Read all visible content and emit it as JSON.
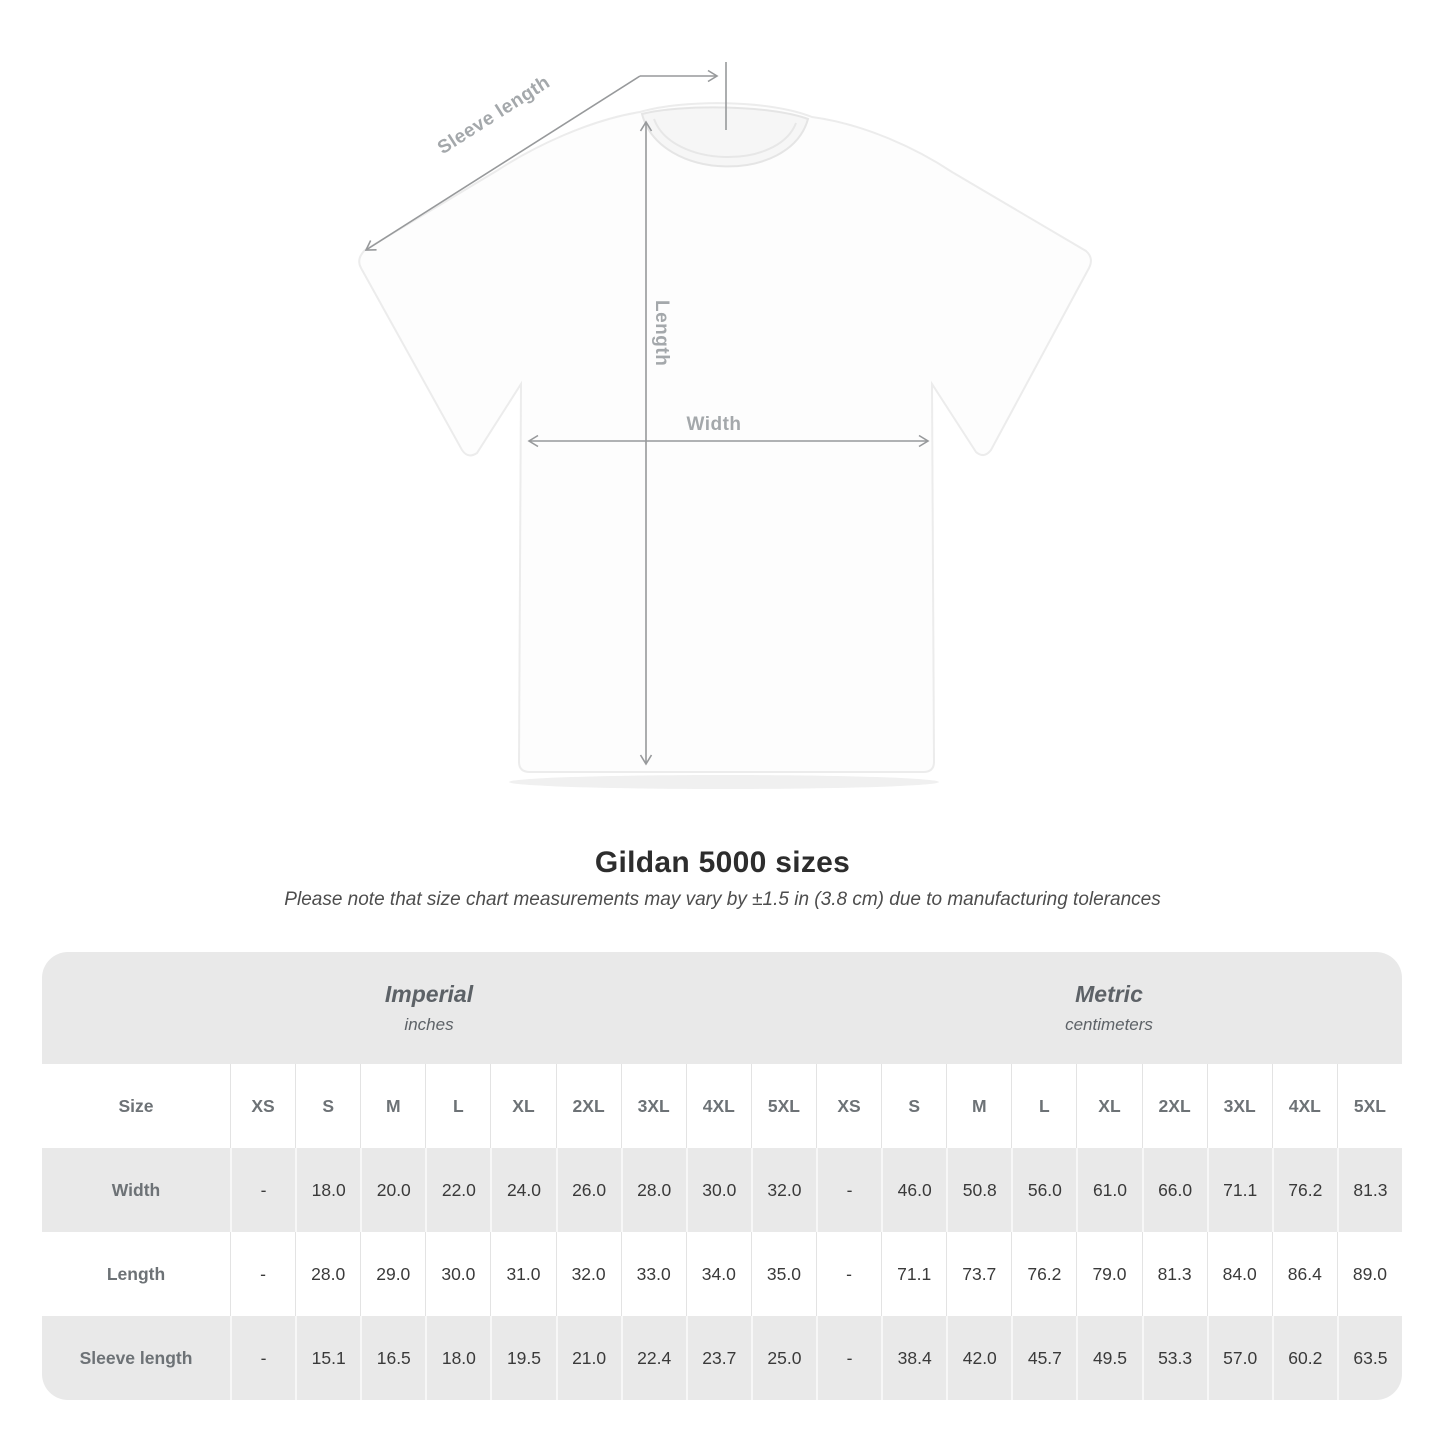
{
  "page": {
    "title": "Gildan 5000 sizes",
    "subtitle": "Please note that size chart measurements may vary by ±1.5 in (3.8 cm) due to manufacturing tolerances"
  },
  "diagram": {
    "sleeve_label": "Sleeve length",
    "length_label": "Length",
    "width_label": "Width"
  },
  "table": {
    "groups": [
      {
        "name": "Imperial",
        "unit": "inches"
      },
      {
        "name": "Metric",
        "unit": "centimeters"
      }
    ],
    "corner_label": "Size",
    "sizes": [
      "XS",
      "S",
      "M",
      "L",
      "XL",
      "2XL",
      "3XL",
      "4XL",
      "5XL"
    ],
    "rows": [
      {
        "label": "Width",
        "imperial": [
          "-",
          "18.0",
          "20.0",
          "22.0",
          "24.0",
          "26.0",
          "28.0",
          "30.0",
          "32.0"
        ],
        "metric": [
          "-",
          "46.0",
          "50.8",
          "56.0",
          "61.0",
          "66.0",
          "71.1",
          "76.2",
          "81.3"
        ]
      },
      {
        "label": "Length",
        "imperial": [
          "-",
          "28.0",
          "29.0",
          "30.0",
          "31.0",
          "32.0",
          "33.0",
          "34.0",
          "35.0"
        ],
        "metric": [
          "-",
          "71.1",
          "73.7",
          "76.2",
          "79.0",
          "81.3",
          "84.0",
          "86.4",
          "89.0"
        ]
      },
      {
        "label": "Sleeve length",
        "imperial": [
          "-",
          "15.1",
          "16.5",
          "18.0",
          "19.5",
          "21.0",
          "22.4",
          "23.7",
          "25.0"
        ],
        "metric": [
          "-",
          "38.4",
          "42.0",
          "45.7",
          "49.5",
          "53.3",
          "57.0",
          "60.2",
          "63.5"
        ]
      }
    ]
  },
  "colors": {
    "band_gray": "#e9e9e9",
    "header_text": "#6d7276",
    "value_text": "#3a3a3a",
    "arrow_gray": "#97999b",
    "diagram_label_gray": "#a4a8ab",
    "title_text": "#2d2d2d"
  },
  "chart_data": {
    "type": "table",
    "title": "Gildan 5000 sizes",
    "note": "Please note that size chart measurements may vary by ±1.5 in (3.8 cm) due to manufacturing tolerances",
    "column_groups": [
      {
        "name": "Imperial",
        "unit": "inches"
      },
      {
        "name": "Metric",
        "unit": "centimeters"
      }
    ],
    "columns": [
      "XS",
      "S",
      "M",
      "L",
      "XL",
      "2XL",
      "3XL",
      "4XL",
      "5XL"
    ],
    "rows": [
      {
        "measurement": "Width",
        "imperial_inches": [
          null,
          18.0,
          20.0,
          22.0,
          24.0,
          26.0,
          28.0,
          30.0,
          32.0
        ],
        "metric_cm": [
          null,
          46.0,
          50.8,
          56.0,
          61.0,
          66.0,
          71.1,
          76.2,
          81.3
        ]
      },
      {
        "measurement": "Length",
        "imperial_inches": [
          null,
          28.0,
          29.0,
          30.0,
          31.0,
          32.0,
          33.0,
          34.0,
          35.0
        ],
        "metric_cm": [
          null,
          71.1,
          73.7,
          76.2,
          79.0,
          81.3,
          84.0,
          86.4,
          89.0
        ]
      },
      {
        "measurement": "Sleeve length",
        "imperial_inches": [
          null,
          15.1,
          16.5,
          18.0,
          19.5,
          21.0,
          22.4,
          23.7,
          25.0
        ],
        "metric_cm": [
          null,
          38.4,
          42.0,
          45.7,
          49.5,
          53.3,
          57.0,
          60.2,
          63.5
        ]
      }
    ]
  }
}
